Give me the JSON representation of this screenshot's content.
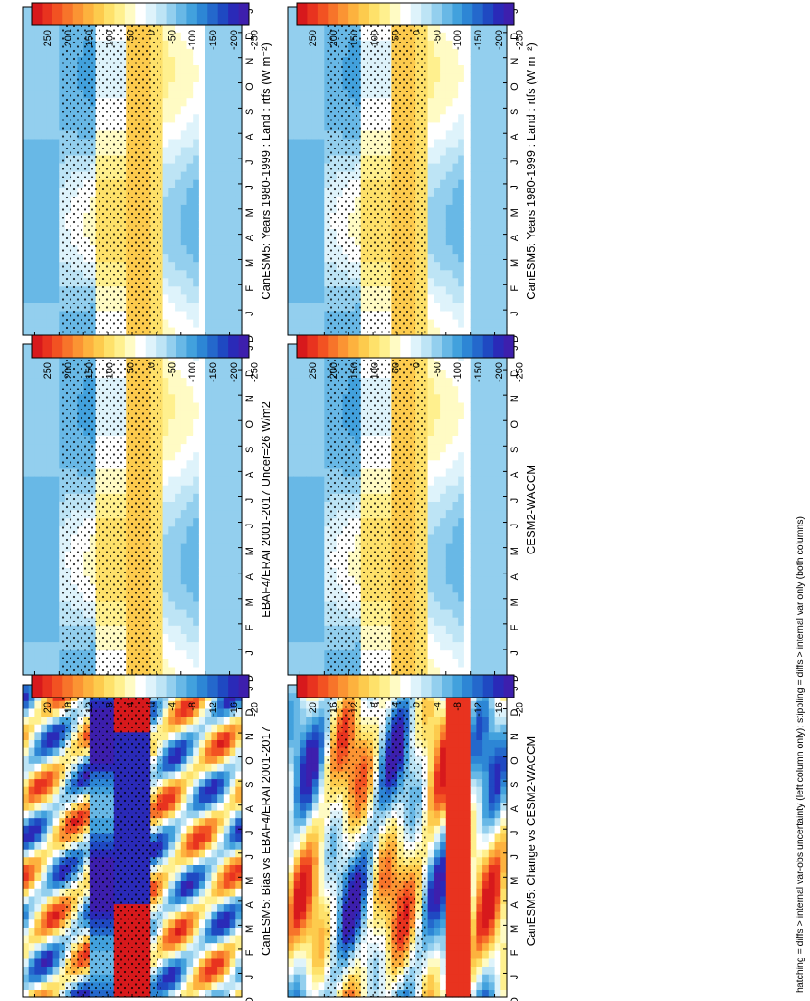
{
  "figure": {
    "footnote": "hatching = diffs > internal var-obs uncertainty (left column only); stippling = diffs > internal var only (both columns)"
  },
  "chart_data": [
    {
      "type": "heatmap",
      "title": "CanESM5: Years 1980-1999 : Land : rtfs (W m⁻²)",
      "x": [
        "D",
        "J",
        "F",
        "M",
        "A",
        "M",
        "J",
        "J",
        "A",
        "S",
        "O",
        "N",
        "D",
        "J"
      ],
      "y": [
        "80",
        "60",
        "40",
        "20",
        "0",
        "20",
        "40",
        "60",
        "80"
      ],
      "ylabels": [
        "°N",
        "°S"
      ],
      "colorbar": {
        "ticks": [
          "250",
          "200",
          "150",
          "100",
          "50",
          "0",
          "-50",
          "-100",
          "-150",
          "-200",
          "-250"
        ]
      },
      "pattern": "clim"
    },
    {
      "type": "heatmap",
      "title": "CanESM5: Years 1980-1999 : Land : rtfs (W m⁻²)",
      "x": [
        "D",
        "J",
        "F",
        "M",
        "A",
        "M",
        "J",
        "J",
        "A",
        "S",
        "O",
        "N",
        "D",
        "J"
      ],
      "y": [
        "80",
        "60",
        "40",
        "20",
        "0",
        "20",
        "40",
        "60",
        "80"
      ],
      "ylabels": [
        "°N",
        "°S"
      ],
      "colorbar": {
        "ticks": [
          "250",
          "200",
          "150",
          "100",
          "50",
          "0",
          "-50",
          "-100",
          "-150",
          "-200",
          "-250"
        ]
      },
      "pattern": "clim"
    },
    {
      "type": "heatmap",
      "title": "EBAF4/ERAI 2001-2017 Uncer=26 W/m2",
      "x": [
        "D",
        "J",
        "F",
        "M",
        "A",
        "M",
        "J",
        "J",
        "A",
        "S",
        "O",
        "N",
        "D",
        "J"
      ],
      "y": [
        "80",
        "60",
        "40",
        "20",
        "0",
        "20",
        "40",
        "60",
        "80"
      ],
      "ylabels": [
        "°N",
        "°S"
      ],
      "colorbar": {
        "ticks": [
          "250",
          "200",
          "150",
          "100",
          "50",
          "0",
          "-50",
          "-100",
          "-150",
          "-200",
          "-250"
        ]
      },
      "pattern": "clim"
    },
    {
      "type": "heatmap",
      "title": "CESM2-WACCM",
      "x": [
        "D",
        "J",
        "F",
        "M",
        "A",
        "M",
        "J",
        "J",
        "A",
        "S",
        "O",
        "N",
        "D",
        "J"
      ],
      "y": [
        "80",
        "60",
        "40",
        "20",
        "0",
        "20",
        "40",
        "60",
        "80"
      ],
      "ylabels": [
        "°N",
        "°S"
      ],
      "colorbar": {
        "ticks": [
          "250",
          "200",
          "150",
          "100",
          "50",
          "0",
          "-50",
          "-100",
          "-150",
          "-200",
          "-250"
        ]
      },
      "pattern": "clim"
    },
    {
      "type": "heatmap",
      "title": "CanESM5: Bias vs EBAF4/ERAI 2001-2017",
      "x": [
        "D",
        "J",
        "F",
        "M",
        "A",
        "M",
        "J",
        "J",
        "A",
        "S",
        "O",
        "N",
        "D",
        "J"
      ],
      "y": [
        "80",
        "60",
        "40",
        "20",
        "0",
        "20",
        "40",
        "60",
        "80"
      ],
      "ylabels": [
        "°N",
        "°S"
      ],
      "colorbar": {
        "ticks": [
          "20",
          "16",
          "12",
          "8",
          "4",
          "0",
          "-4",
          "-8",
          "-12",
          "-16",
          "-20"
        ]
      },
      "pattern": "bias"
    },
    {
      "type": "heatmap",
      "title": "CanESM5: Change vs CESM2-WACCM",
      "x": [
        "D",
        "J",
        "F",
        "M",
        "A",
        "M",
        "J",
        "J",
        "A",
        "S",
        "O",
        "N",
        "D",
        "J"
      ],
      "y": [
        "80",
        "60",
        "40",
        "20",
        "0",
        "20",
        "40",
        "60",
        "80"
      ],
      "ylabels": [
        "°N",
        "°S"
      ],
      "colorbar": {
        "ticks": [
          "20",
          "16",
          "12",
          "8",
          "4",
          "0",
          "-4",
          "-8",
          "-12",
          "-16",
          "-20"
        ]
      },
      "pattern": "change"
    }
  ]
}
